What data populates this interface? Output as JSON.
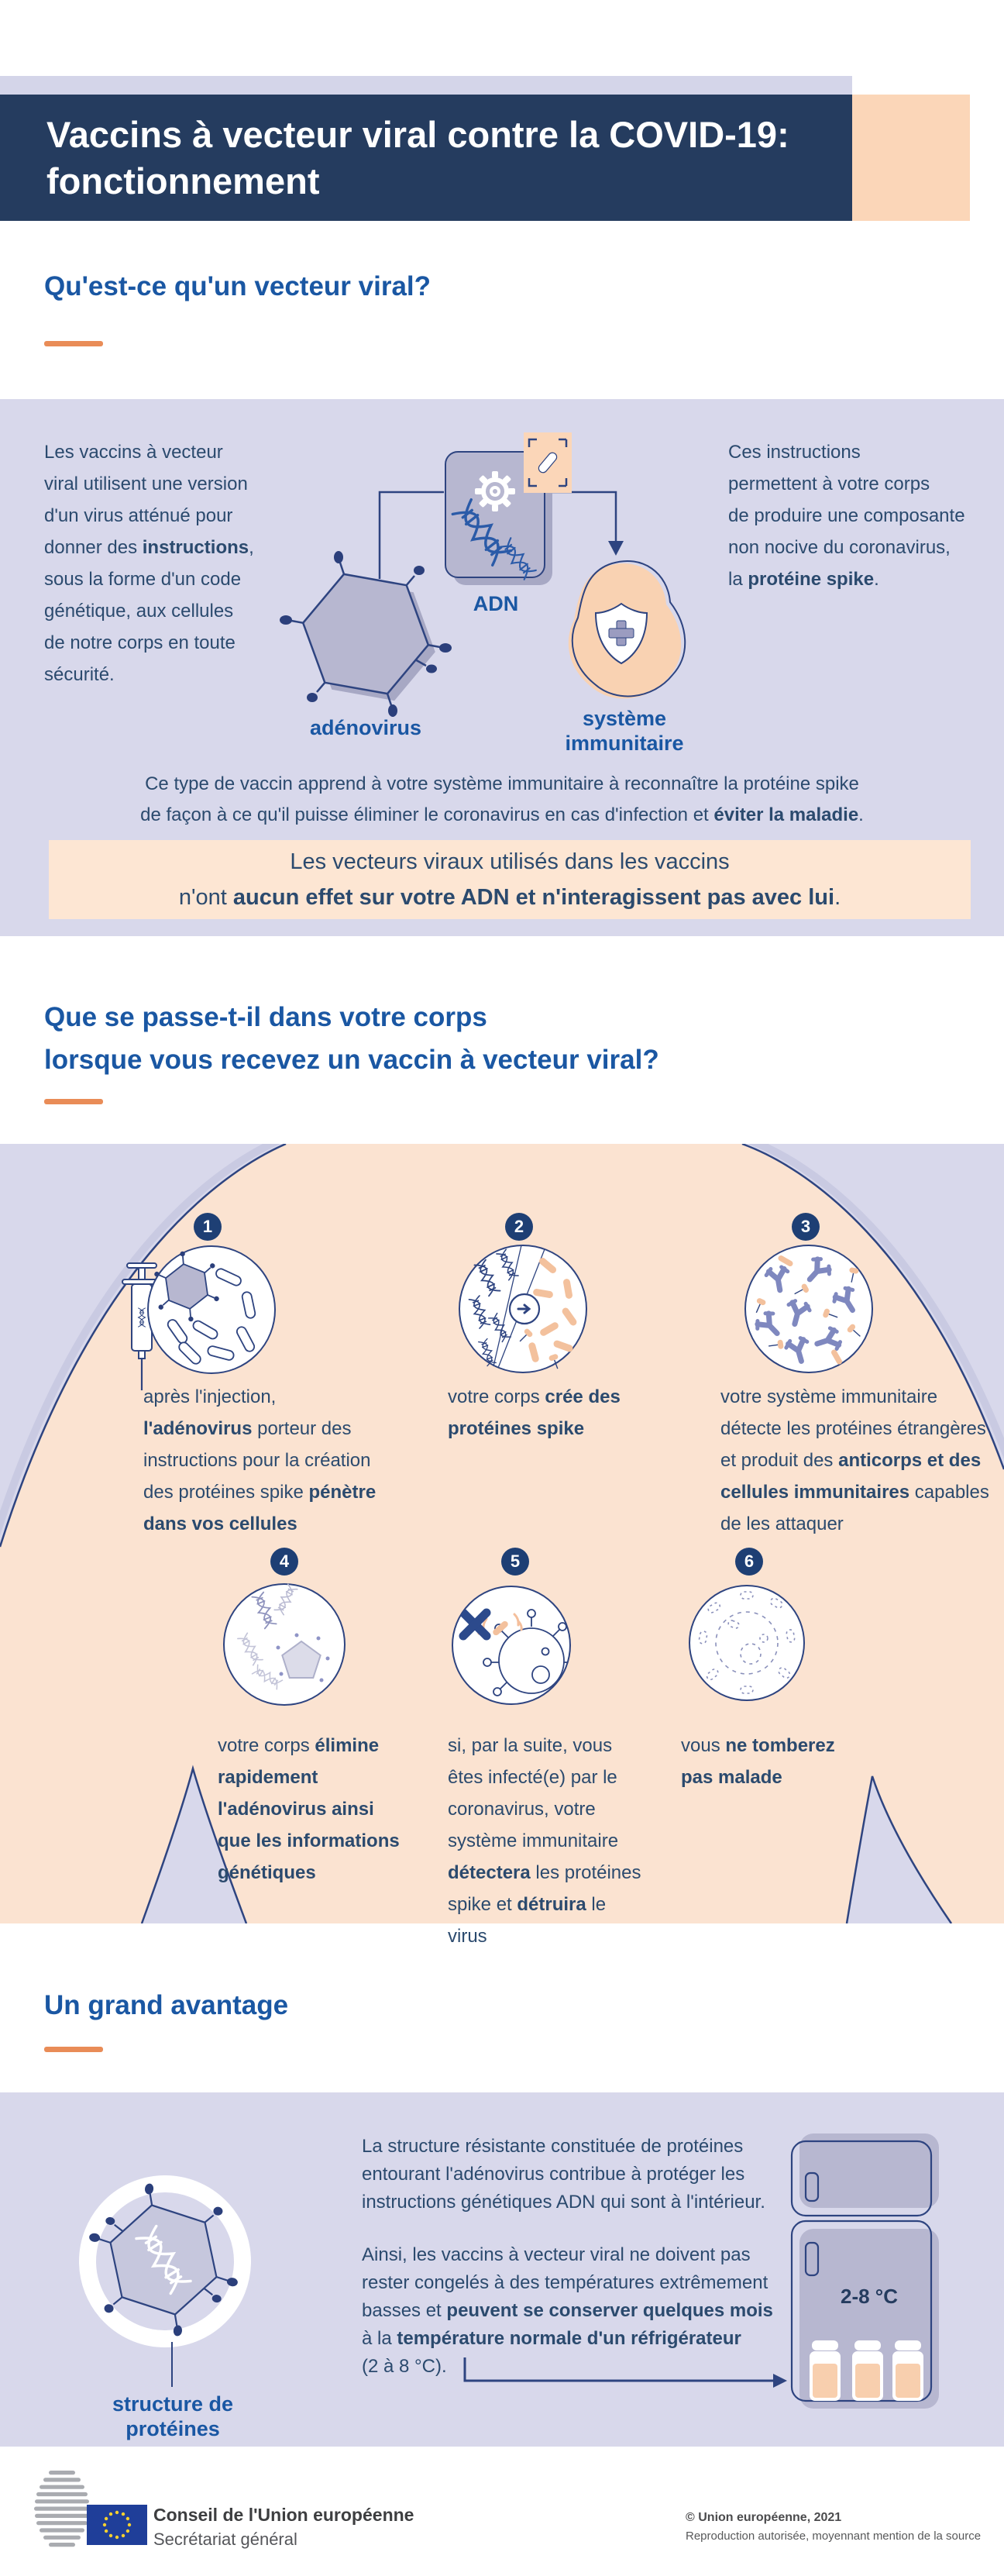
{
  "header": {
    "title": "Vaccins à vecteur viral contre la COVID-19:\nfonctionnement"
  },
  "section1": {
    "heading": "Qu'est-ce qu'un vecteur viral?",
    "left_paragraph": "Les vaccins à vecteur\nviral utilisent une version\nd'un virus atténué pour\ndonner des **instructions**,\nsous la forme d'un code\ngénétique, aux cellules\nde notre corps en toute\nsécurité.",
    "right_paragraph": "Ces instructions\npermettent à votre corps\nde produire une composante\nnon nocive du coronavirus,\nla **protéine spike**.",
    "labels": {
      "adenovirus": "adénovirus",
      "adn": "ADN",
      "immune_system": "système\nimmunitaire"
    },
    "summary": "Ce type de vaccin apprend à votre système immunitaire à reconnaître la protéine spike\nde façon à ce qu'il puisse éliminer le coronavirus en cas d'infection et **éviter la maladie**.",
    "callout": "Les vecteurs viraux utilisés dans les vaccins\nn'ont **aucun effet sur votre ADN et n'interagissent pas avec lui**."
  },
  "section2": {
    "heading": "Que se passe-t-il dans votre corps\nlorsque vous recevez un vaccin à vecteur viral?",
    "steps": [
      {
        "num": "1",
        "text": "après l'injection,\n**l'adénovirus** porteur des\ninstructions pour la création\ndes protéines spike **pénètre\ndans vos cellules**"
      },
      {
        "num": "2",
        "text": "votre corps **crée des\nprotéines spike**"
      },
      {
        "num": "3",
        "text": "votre système immunitaire\ndétecte les protéines étrangères\net produit des **anticorps et des\ncellules immunitaires** capables\nde les attaquer"
      },
      {
        "num": "4",
        "text": "votre corps **élimine\nrapidement\nl'adénovirus ainsi\nque les informations\ngénétiques**"
      },
      {
        "num": "5",
        "text": "si, par la suite, vous\nêtes infecté(e) par le\ncoronavirus, votre\nsystème immunitaire\n**détectera** les protéines\nspike et **détruira** le\nvirus"
      },
      {
        "num": "6",
        "text": "vous **ne tomberez\npas malade**"
      }
    ]
  },
  "section3": {
    "heading": "Un grand avantage",
    "paragraph1": "La structure résistante constituée de protéines\nentourant l'adénovirus contribue à protéger les\ninstructions génétiques ADN qui sont à l'intérieur.",
    "paragraph2": "Ainsi, les vaccins à vecteur viral ne doivent pas\nrester congelés à des températures extrêmement\nbasses et **peuvent se conserver quelques mois**\nà la **température normale d'un réfrigérateur**\n(2 à 8 °C).",
    "label_structure": "structure de\nprotéines",
    "fridge_temp": "2-8 °C"
  },
  "footer": {
    "org": "Conseil de l'Union européenne",
    "org_sub": "Secrétariat général",
    "copyright": "© Union européenne, 2021",
    "license": "Reproduction autorisée, moyennant mention de la source"
  },
  "icons": {
    "adenovirus-icon": "hexagonal virus with spike proteins",
    "dna-card-icon": "card with gear and DNA helix",
    "crop-marks-icon": "spike rod selected by crop marks",
    "shield-icon": "shield with medical cross in immune blob",
    "syringe-icon": "syringe with DNA vaccine",
    "cell-icon": "cell circle illustrations steps 1-6",
    "coronavirus-icon": "coronavirus blocked by X",
    "antibody-icon": "Y-shaped antibodies",
    "fridge-icon": "refrigerator with vaccine vials",
    "europa-logo-icon": "Council of the EU logo with EU flag"
  },
  "colors": {
    "banner_navy": "#253c5f",
    "heading_blue": "#1a57a3",
    "text_navy": "#2b4a6e",
    "orange": "#e98c57",
    "lavender": "#d8d8eb",
    "peach_silhouette": "#fbe3d1",
    "peach_callout": "#fde6d3",
    "peach_block": "#fbd6b8",
    "icon_fill": "#b7b7d0",
    "icon_stroke": "#2e4480",
    "eu_blue": "#1f3e99",
    "star_yellow": "#f8d12e"
  }
}
